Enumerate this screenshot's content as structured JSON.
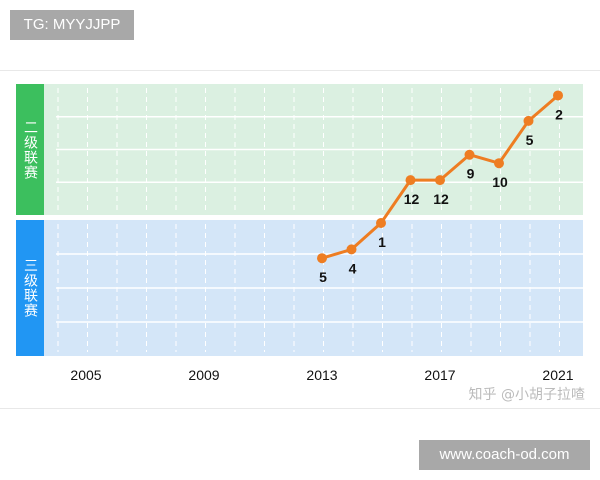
{
  "header": {
    "tag": "TG: MYYJJPP"
  },
  "footer": {
    "site": "www.coach-od.com",
    "watermark": "知乎 @小胡子拉喳"
  },
  "chart_data": {
    "type": "line",
    "title": "",
    "bands": [
      {
        "label": "二级联赛",
        "color": "#3cbf5e",
        "fill": "#dbf0e1",
        "teams": 16
      },
      {
        "label": "三级联赛",
        "color": "#2196f3",
        "fill": "#d4e6f8",
        "teams": 16
      }
    ],
    "x_ticks": [
      "2005",
      "2009",
      "2013",
      "2017",
      "2021"
    ],
    "xlim": [
      2001,
      2021
    ],
    "points": [
      {
        "year": 2013,
        "league": 1,
        "rank": 5,
        "label": "5"
      },
      {
        "year": 2014,
        "league": 1,
        "rank": 4,
        "label": "4"
      },
      {
        "year": 2015,
        "league": 1,
        "rank": 1,
        "label": "1"
      },
      {
        "year": 2016,
        "league": 0,
        "rank": 12,
        "label": "12"
      },
      {
        "year": 2017,
        "league": 0,
        "rank": 12,
        "label": "12"
      },
      {
        "year": 2018,
        "league": 0,
        "rank": 9,
        "label": "9"
      },
      {
        "year": 2019,
        "league": 0,
        "rank": 10,
        "label": "10"
      },
      {
        "year": 2020,
        "league": 0,
        "rank": 5,
        "label": "5"
      },
      {
        "year": 2021,
        "league": 0,
        "rank": 2,
        "label": "2"
      }
    ],
    "line_color": "#ee7d22"
  }
}
